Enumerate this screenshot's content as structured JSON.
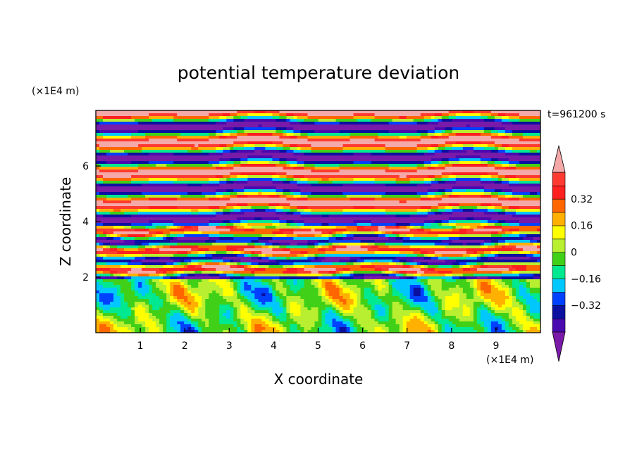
{
  "chart_data": {
    "type": "heatmap",
    "title": "potential temperature deviation",
    "time_label": "t=961200 s",
    "xlabel": "X coordinate",
    "ylabel": "Z coordinate",
    "x_unit": "(×1E4 m)",
    "y_unit": "(×1E4 m)",
    "xlim": [
      0,
      10
    ],
    "ylim": [
      0,
      8
    ],
    "x_ticks": [
      1,
      2,
      3,
      4,
      5,
      6,
      7,
      8,
      9
    ],
    "y_ticks": [
      2,
      4,
      6
    ],
    "colorbar": {
      "levels": [
        -0.48,
        -0.4,
        -0.32,
        -0.24,
        -0.16,
        -0.08,
        0,
        0.08,
        0.16,
        0.24,
        0.32,
        0.4,
        0.48
      ],
      "tick_values": [
        -0.32,
        -0.16,
        0,
        0.16,
        0.32
      ],
      "tick_labels": [
        "−0.32",
        "−0.16",
        "0",
        "0.16",
        "0.32"
      ],
      "colors": [
        "#7a1aa8",
        "#4a0ab0",
        "#0b10a0",
        "#0040ff",
        "#00c8ff",
        "#00e890",
        "#40d018",
        "#b8ef30",
        "#ffff00",
        "#ffb000",
        "#ff6600",
        "#ff2020",
        "#ff3a30",
        "#f5a8a8"
      ]
    }
  }
}
